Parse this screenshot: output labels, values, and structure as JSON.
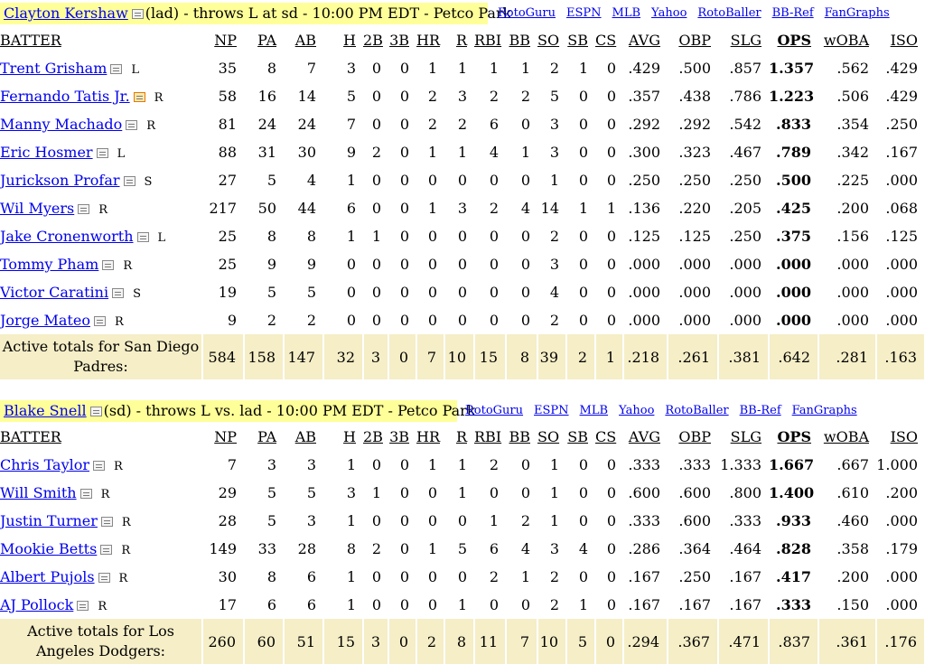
{
  "matchups": [
    {
      "pitcher": "Clayton Kershaw",
      "matchup_text": "(lad) - throws L at sd - 10:00 PM EDT - Petco Park",
      "links": [
        "RotoGuru",
        "ESPN",
        "MLB",
        "Yahoo",
        "RotoBaller",
        "BB-Ref",
        "FanGraphs"
      ],
      "columns": [
        "BATTER",
        "NP",
        "PA",
        "AB",
        "H",
        "2B",
        "3B",
        "HR",
        "R",
        "RBI",
        "BB",
        "SO",
        "SB",
        "CS",
        "AVG",
        "OBP",
        "SLG",
        "OPS",
        "wOBA",
        "ISO"
      ],
      "batters": [
        {
          "name": "Trent Grisham",
          "hand": "L",
          "injury": false,
          "stats": [
            "35",
            "8",
            "7",
            "3",
            "0",
            "0",
            "1",
            "1",
            "1",
            "1",
            "2",
            "1",
            "0",
            ".429",
            ".500",
            ".857",
            "1.357",
            ".562",
            ".429"
          ]
        },
        {
          "name": "Fernando Tatis Jr.",
          "hand": "R",
          "injury": true,
          "stats": [
            "58",
            "16",
            "14",
            "5",
            "0",
            "0",
            "2",
            "3",
            "2",
            "2",
            "5",
            "0",
            "0",
            ".357",
            ".438",
            ".786",
            "1.223",
            ".506",
            ".429"
          ]
        },
        {
          "name": "Manny Machado",
          "hand": "R",
          "injury": false,
          "stats": [
            "81",
            "24",
            "24",
            "7",
            "0",
            "0",
            "2",
            "2",
            "6",
            "0",
            "3",
            "0",
            "0",
            ".292",
            ".292",
            ".542",
            ".833",
            ".354",
            ".250"
          ]
        },
        {
          "name": "Eric Hosmer",
          "hand": "L",
          "injury": false,
          "stats": [
            "88",
            "31",
            "30",
            "9",
            "2",
            "0",
            "1",
            "1",
            "4",
            "1",
            "3",
            "0",
            "0",
            ".300",
            ".323",
            ".467",
            ".789",
            ".342",
            ".167"
          ]
        },
        {
          "name": "Jurickson Profar",
          "hand": "S",
          "injury": false,
          "stats": [
            "27",
            "5",
            "4",
            "1",
            "0",
            "0",
            "0",
            "0",
            "0",
            "0",
            "1",
            "0",
            "0",
            ".250",
            ".250",
            ".250",
            ".500",
            ".225",
            ".000"
          ]
        },
        {
          "name": "Wil Myers",
          "hand": "R",
          "injury": false,
          "stats": [
            "217",
            "50",
            "44",
            "6",
            "0",
            "0",
            "1",
            "3",
            "2",
            "4",
            "14",
            "1",
            "1",
            ".136",
            ".220",
            ".205",
            ".425",
            ".200",
            ".068"
          ]
        },
        {
          "name": "Jake Cronenworth",
          "hand": "L",
          "injury": false,
          "stats": [
            "25",
            "8",
            "8",
            "1",
            "1",
            "0",
            "0",
            "0",
            "0",
            "0",
            "2",
            "0",
            "0",
            ".125",
            ".125",
            ".250",
            ".375",
            ".156",
            ".125"
          ]
        },
        {
          "name": "Tommy Pham",
          "hand": "R",
          "injury": false,
          "stats": [
            "25",
            "9",
            "9",
            "0",
            "0",
            "0",
            "0",
            "0",
            "0",
            "0",
            "3",
            "0",
            "0",
            ".000",
            ".000",
            ".000",
            ".000",
            ".000",
            ".000"
          ]
        },
        {
          "name": "Victor Caratini",
          "hand": "S",
          "injury": false,
          "stats": [
            "19",
            "5",
            "5",
            "0",
            "0",
            "0",
            "0",
            "0",
            "0",
            "0",
            "4",
            "0",
            "0",
            ".000",
            ".000",
            ".000",
            ".000",
            ".000",
            ".000"
          ]
        },
        {
          "name": "Jorge Mateo",
          "hand": "R",
          "injury": false,
          "stats": [
            "9",
            "2",
            "2",
            "0",
            "0",
            "0",
            "0",
            "0",
            "0",
            "0",
            "2",
            "0",
            "0",
            ".000",
            ".000",
            ".000",
            ".000",
            ".000",
            ".000"
          ]
        }
      ],
      "totals_label": "Active totals for San Diego Padres:",
      "totals": [
        "584",
        "158",
        "147",
        "32",
        "3",
        "0",
        "7",
        "10",
        "15",
        "8",
        "39",
        "2",
        "1",
        ".218",
        ".261",
        ".381",
        ".642",
        ".281",
        ".163"
      ]
    },
    {
      "pitcher": "Blake Snell",
      "matchup_text": "(sd) - throws L vs. lad - 10:00 PM EDT - Petco Park",
      "links": [
        "RotoGuru",
        "ESPN",
        "MLB",
        "Yahoo",
        "RotoBaller",
        "BB-Ref",
        "FanGraphs"
      ],
      "columns": [
        "BATTER",
        "NP",
        "PA",
        "AB",
        "H",
        "2B",
        "3B",
        "HR",
        "R",
        "RBI",
        "BB",
        "SO",
        "SB",
        "CS",
        "AVG",
        "OBP",
        "SLG",
        "OPS",
        "wOBA",
        "ISO"
      ],
      "batters": [
        {
          "name": "Chris Taylor",
          "hand": "R",
          "injury": false,
          "stats": [
            "7",
            "3",
            "3",
            "1",
            "0",
            "0",
            "1",
            "1",
            "2",
            "0",
            "1",
            "0",
            "0",
            ".333",
            ".333",
            "1.333",
            "1.667",
            ".667",
            "1.000"
          ]
        },
        {
          "name": "Will Smith",
          "hand": "R",
          "injury": false,
          "stats": [
            "29",
            "5",
            "5",
            "3",
            "1",
            "0",
            "0",
            "1",
            "0",
            "0",
            "1",
            "0",
            "0",
            ".600",
            ".600",
            ".800",
            "1.400",
            ".610",
            ".200"
          ]
        },
        {
          "name": "Justin Turner",
          "hand": "R",
          "injury": false,
          "stats": [
            "28",
            "5",
            "3",
            "1",
            "0",
            "0",
            "0",
            "0",
            "1",
            "2",
            "1",
            "0",
            "0",
            ".333",
            ".600",
            ".333",
            ".933",
            ".460",
            ".000"
          ]
        },
        {
          "name": "Mookie Betts",
          "hand": "R",
          "injury": false,
          "stats": [
            "149",
            "33",
            "28",
            "8",
            "2",
            "0",
            "1",
            "5",
            "6",
            "4",
            "3",
            "4",
            "0",
            ".286",
            ".364",
            ".464",
            ".828",
            ".358",
            ".179"
          ]
        },
        {
          "name": "Albert Pujols",
          "hand": "R",
          "injury": false,
          "stats": [
            "30",
            "8",
            "6",
            "1",
            "0",
            "0",
            "0",
            "0",
            "2",
            "1",
            "2",
            "0",
            "0",
            ".167",
            ".250",
            ".167",
            ".417",
            ".200",
            ".000"
          ]
        },
        {
          "name": "AJ Pollock",
          "hand": "R",
          "injury": false,
          "stats": [
            "17",
            "6",
            "6",
            "1",
            "0",
            "0",
            "0",
            "1",
            "0",
            "0",
            "2",
            "1",
            "0",
            ".167",
            ".167",
            ".167",
            ".333",
            ".150",
            ".000"
          ]
        }
      ],
      "totals_label": "Active totals for Los Angeles Dodgers:",
      "totals": [
        "260",
        "60",
        "51",
        "15",
        "3",
        "0",
        "2",
        "8",
        "11",
        "7",
        "10",
        "5",
        "0",
        ".294",
        ".367",
        ".471",
        ".837",
        ".361",
        ".176"
      ]
    }
  ]
}
